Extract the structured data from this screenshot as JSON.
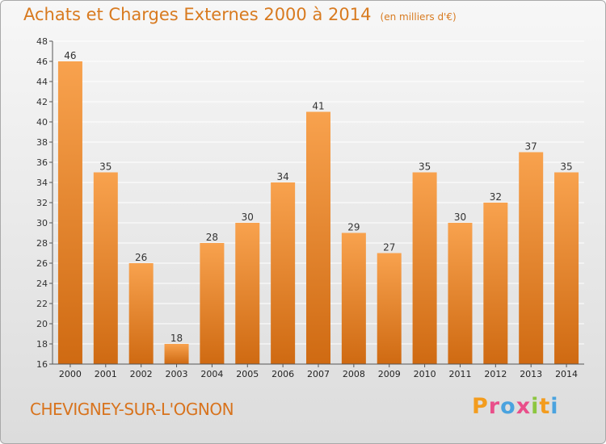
{
  "chart_data": {
    "type": "bar",
    "title": "Achats et Charges Externes 2000 à 2014",
    "subtitle": "(en milliers d'€)",
    "categories": [
      "2000",
      "2001",
      "2002",
      "2003",
      "2004",
      "2005",
      "2006",
      "2007",
      "2008",
      "2009",
      "2010",
      "2011",
      "2012",
      "2013",
      "2014"
    ],
    "values": [
      46,
      35,
      26,
      18,
      28,
      30,
      34,
      41,
      29,
      27,
      35,
      30,
      32,
      37,
      35
    ],
    "ylim": [
      16,
      48
    ],
    "yticks": [
      16,
      18,
      20,
      22,
      24,
      26,
      28,
      30,
      32,
      34,
      36,
      38,
      40,
      42,
      44,
      46,
      48
    ],
    "grid": true,
    "xlabel": "",
    "ylabel": ""
  },
  "footer": {
    "commune": "CHEVIGNEY-SUR-L'OGNON",
    "brand": "Proxiti"
  },
  "colors": {
    "bar_light": "#f8a24e",
    "bar_dark": "#cf6a12",
    "title": "#d87a1f",
    "brand_letters": [
      "#f39c1e",
      "#e94f8a",
      "#4aa3df",
      "#e94f8a",
      "#8cc63f",
      "#f39c1e",
      "#4aa3df"
    ]
  }
}
